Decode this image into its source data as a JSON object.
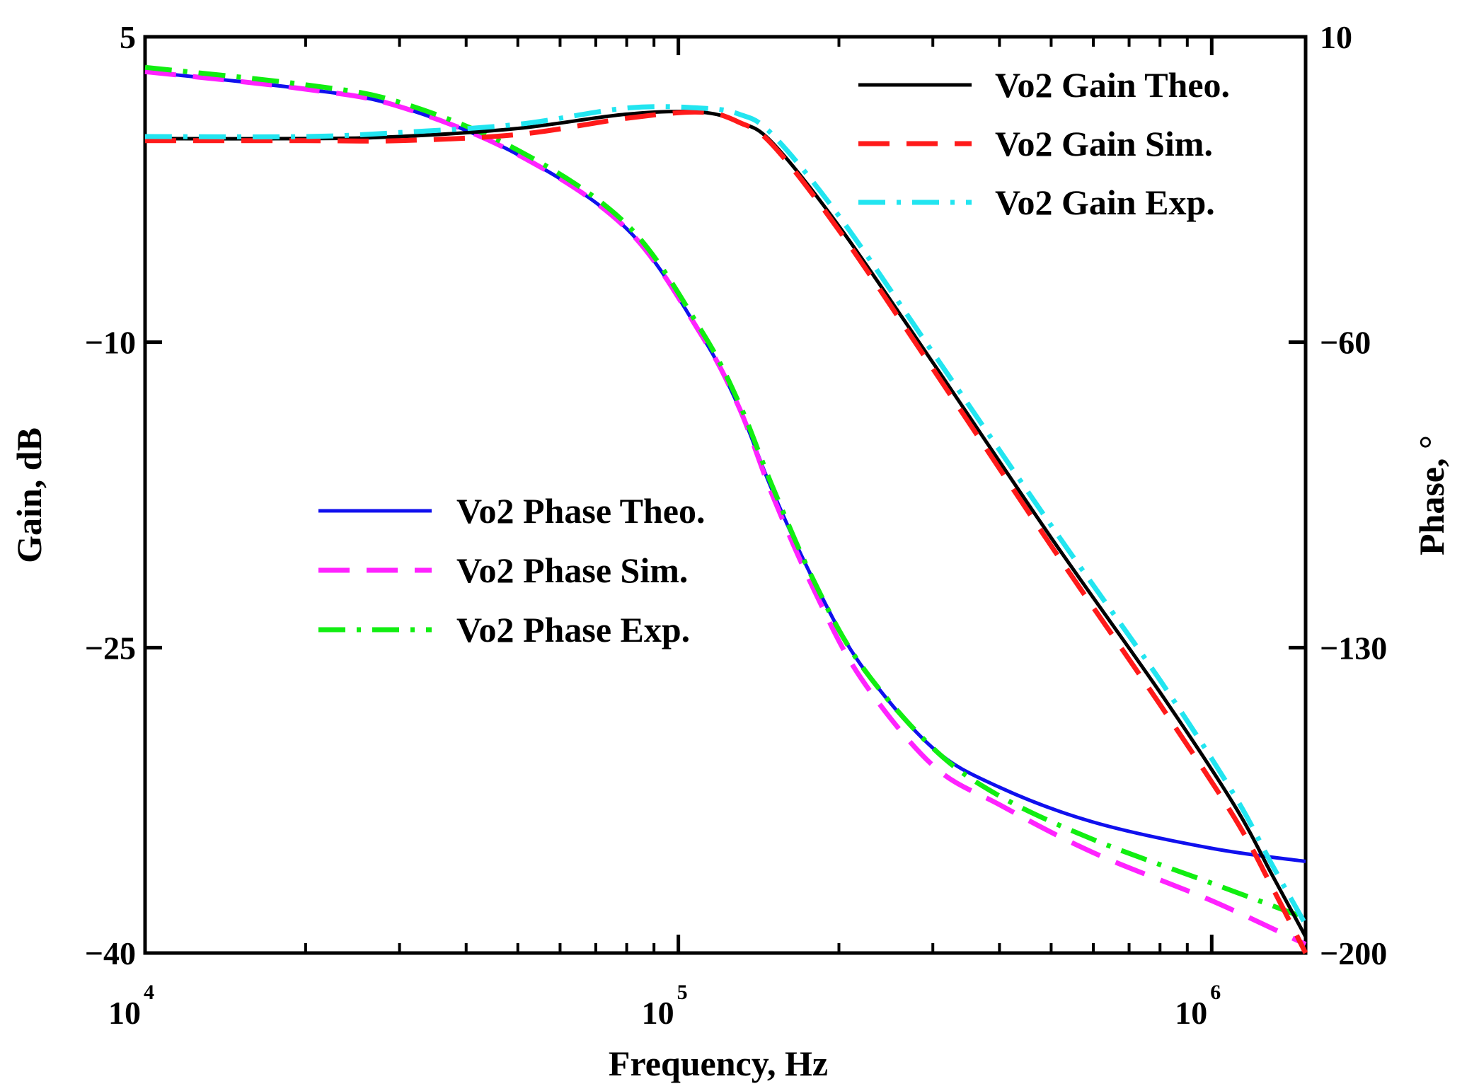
{
  "chart_data": {
    "type": "line",
    "x_scale": "log",
    "xlabel": "Frequency, Hz",
    "ylabel_left": "Gain, dB",
    "ylabel_right": "Phase, °",
    "xlim": [
      10000,
      1500000
    ],
    "ylim_left": [
      -40,
      5
    ],
    "ylim_right": [
      -200,
      10
    ],
    "x_ticks": [
      {
        "value": 10000,
        "base": "10",
        "exp": "4"
      },
      {
        "value": 100000,
        "base": "10",
        "exp": "5"
      },
      {
        "value": 1000000,
        "base": "10",
        "exp": "6"
      }
    ],
    "y_ticks_left": [
      {
        "value": 5,
        "label": "5"
      },
      {
        "value": -10,
        "label": "−10"
      },
      {
        "value": -25,
        "label": "−25"
      },
      {
        "value": -40,
        "label": "−40"
      }
    ],
    "y_ticks_right": [
      {
        "value": 10,
        "label": "10"
      },
      {
        "value": -60,
        "label": "−60"
      },
      {
        "value": -130,
        "label": "−130"
      },
      {
        "value": -200,
        "label": "−200"
      }
    ],
    "series": [
      {
        "name": "Vo2 Gain Theo.",
        "axis": "left",
        "color": "#000000",
        "dash": "solid",
        "x": [
          10000,
          20000,
          30000,
          50000,
          80000,
          110000,
          130000,
          150000,
          200000,
          300000,
          500000,
          800000,
          1100000,
          1300000,
          1500000
        ],
        "y": [
          0.0,
          0.0,
          0.1,
          0.5,
          1.2,
          1.3,
          0.8,
          -0.2,
          -4.3,
          -11.0,
          -19.6,
          -27.2,
          -32.7,
          -36.2,
          -39.2
        ]
      },
      {
        "name": "Vo2 Gain Sim.",
        "axis": "left",
        "color": "#ff1a1a",
        "dash": "dashed",
        "x": [
          10000,
          20000,
          30000,
          50000,
          80000,
          110000,
          130000,
          150000,
          200000,
          300000,
          500000,
          800000,
          1100000,
          1300000,
          1500000
        ],
        "y": [
          -0.1,
          -0.1,
          -0.1,
          0.2,
          1.0,
          1.3,
          0.8,
          -0.3,
          -4.5,
          -11.3,
          -20.0,
          -27.8,
          -33.3,
          -36.8,
          -40.0
        ]
      },
      {
        "name": "Vo2 Gain Exp.",
        "axis": "left",
        "color": "#22e5f0",
        "dash": "dashdot",
        "x": [
          10000,
          20000,
          30000,
          50000,
          80000,
          110000,
          130000,
          150000,
          200000,
          300000,
          500000,
          800000,
          1100000,
          1300000,
          1500000
        ],
        "y": [
          0.1,
          0.1,
          0.3,
          0.7,
          1.5,
          1.5,
          1.2,
          0.2,
          -3.8,
          -10.5,
          -19.0,
          -26.6,
          -32.2,
          -35.7,
          -38.6
        ]
      },
      {
        "name": "Vo2 Phase Theo.",
        "axis": "right",
        "color": "#1010ee",
        "dash": "solid",
        "x": [
          10000,
          20000,
          30000,
          50000,
          80000,
          110000,
          130000,
          150000,
          180000,
          220000,
          300000,
          400000,
          600000,
          1000000,
          1500000
        ],
        "y": [
          2,
          -2,
          -6,
          -17,
          -34,
          -58,
          -75,
          -94,
          -115,
          -134,
          -153,
          -162,
          -170,
          -176,
          -179
        ]
      },
      {
        "name": "Vo2 Phase Sim.",
        "axis": "right",
        "color": "#ff22ff",
        "dash": "dashed",
        "x": [
          10000,
          20000,
          30000,
          50000,
          80000,
          110000,
          130000,
          150000,
          180000,
          220000,
          300000,
          400000,
          600000,
          1000000,
          1500000
        ],
        "y": [
          2,
          -2,
          -6,
          -17,
          -34,
          -58,
          -75,
          -95,
          -117,
          -137,
          -157,
          -166,
          -177,
          -188,
          -198
        ]
      },
      {
        "name": "Vo2 Phase Exp.",
        "axis": "right",
        "color": "#11ee11",
        "dash": "dashdot",
        "x": [
          10000,
          20000,
          30000,
          50000,
          80000,
          110000,
          130000,
          150000,
          180000,
          220000,
          300000,
          400000,
          600000,
          1000000,
          1500000
        ],
        "y": [
          3,
          -1,
          -5,
          -16,
          -33,
          -57,
          -74,
          -93,
          -115,
          -134,
          -153,
          -164,
          -174,
          -184,
          -192
        ]
      }
    ],
    "legend": [
      {
        "group": "gain",
        "placement": "top-right",
        "entries": [
          "Vo2 Gain Theo.",
          "Vo2 Gain Sim.",
          "Vo2 Gain Exp."
        ]
      },
      {
        "group": "phase",
        "placement": "center-left",
        "entries": [
          "Vo2 Phase Theo.",
          "Vo2 Phase Sim.",
          "Vo2 Phase Exp."
        ]
      }
    ]
  }
}
